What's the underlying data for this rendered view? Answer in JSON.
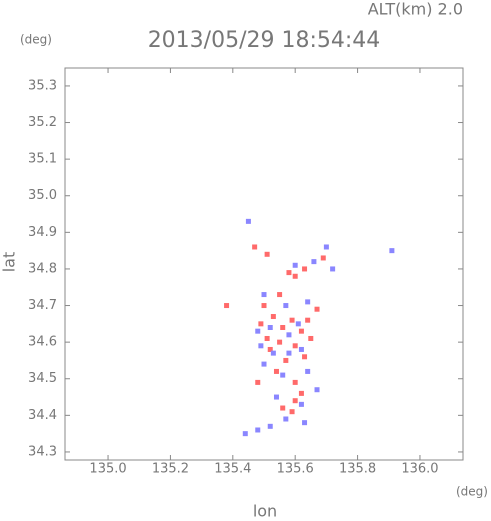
{
  "chart_data": {
    "type": "scatter",
    "title": "2013/05/29 18:54:44",
    "subtitle": "ALT(km) 2.0",
    "x_label": "lon",
    "x_unit": "(deg)",
    "y_label": "lat",
    "y_unit": "(deg)",
    "xlim": [
      134.862,
      136.138
    ],
    "ylim": [
      34.278,
      35.349
    ],
    "xticks": [
      {
        "value": 135,
        "label": "135.0"
      },
      135.2,
      135.4,
      135.6,
      135.8,
      {
        "value": 136,
        "label": "136.0"
      }
    ],
    "yticks": [
      34.3,
      34.4,
      34.5,
      34.6,
      34.7,
      34.8,
      34.9,
      {
        "value": 35,
        "label": "35.0"
      },
      35.1,
      35.2,
      35.3
    ],
    "series": [
      {
        "color": "#ff6a6a",
        "x": [
          135.38,
          135.47,
          135.51,
          135.58,
          135.6,
          135.63,
          135.69,
          135.5,
          135.49,
          135.53,
          135.56,
          135.59,
          135.62,
          135.64,
          135.55,
          135.6,
          135.52,
          135.57,
          135.63,
          135.54,
          135.48,
          135.6,
          135.62,
          135.56,
          135.6,
          135.59,
          135.65,
          135.51,
          135.67,
          135.55
        ],
        "y": [
          34.7,
          34.86,
          34.84,
          34.79,
          34.78,
          34.8,
          34.83,
          34.7,
          34.65,
          34.67,
          34.64,
          34.66,
          34.63,
          34.66,
          34.6,
          34.59,
          34.58,
          34.55,
          34.56,
          34.52,
          34.49,
          34.49,
          34.46,
          34.42,
          34.44,
          34.41,
          34.61,
          34.61,
          34.69,
          34.73
        ]
      },
      {
        "color": "#8a86ff",
        "x": [
          135.45,
          135.6,
          135.66,
          135.7,
          135.72,
          135.91,
          135.5,
          135.48,
          135.52,
          135.58,
          135.61,
          135.53,
          135.58,
          135.62,
          135.5,
          135.56,
          135.64,
          135.67,
          135.62,
          135.57,
          135.63,
          135.44,
          135.48,
          135.52,
          135.54,
          135.57,
          135.64,
          135.49
        ],
        "y": [
          34.93,
          34.81,
          34.82,
          34.86,
          34.8,
          34.85,
          34.73,
          34.63,
          34.64,
          34.62,
          34.65,
          34.57,
          34.57,
          34.58,
          34.54,
          34.51,
          34.52,
          34.47,
          34.43,
          34.39,
          34.38,
          34.35,
          34.36,
          34.37,
          34.45,
          34.7,
          34.71,
          34.59
        ]
      }
    ]
  }
}
